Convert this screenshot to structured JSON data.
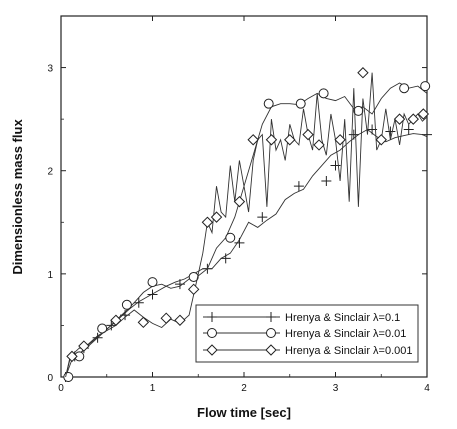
{
  "chart_data": {
    "type": "line",
    "title": "",
    "xlabel": "Flow time [sec]",
    "ylabel": "Dimensionless mass flux",
    "xlim": [
      0,
      4
    ],
    "ylim": [
      0,
      3.5
    ],
    "xticks": [
      "0",
      "1",
      "2",
      "3",
      "4"
    ],
    "yticks": [
      "0",
      "1",
      "2",
      "3"
    ],
    "grid": false,
    "legend_position": "lower-right",
    "series": [
      {
        "name": "Hrenya & Sinclair λ=0.1",
        "marker": "plus",
        "x": [
          0.05,
          0.12,
          0.2,
          0.28,
          0.35,
          0.45,
          0.55,
          0.65,
          0.75,
          0.85,
          0.95,
          1.05,
          1.15,
          1.25,
          1.35,
          1.45,
          1.55,
          1.65,
          1.75,
          1.85,
          1.95,
          2.05,
          2.15,
          2.25,
          2.35,
          2.45,
          2.55,
          2.65,
          2.75,
          2.85,
          2.95,
          3.05,
          3.15,
          3.25,
          3.35,
          3.45,
          3.55,
          3.65,
          3.75,
          3.85,
          3.95,
          4.0
        ],
        "y": [
          0.0,
          0.17,
          0.22,
          0.3,
          0.35,
          0.43,
          0.5,
          0.58,
          0.66,
          0.73,
          0.78,
          0.83,
          0.88,
          0.92,
          0.95,
          1.0,
          1.05,
          1.05,
          1.15,
          1.2,
          1.33,
          1.5,
          1.45,
          1.52,
          1.58,
          1.72,
          1.78,
          1.82,
          1.95,
          2.05,
          2.15,
          2.2,
          2.28,
          2.35,
          2.4,
          2.33,
          2.28,
          2.32,
          2.34,
          2.36,
          2.35,
          2.33
        ],
        "marker_x": [
          0.05,
          0.15,
          0.25,
          0.4,
          0.55,
          0.7,
          0.85,
          1.0,
          1.3,
          1.6,
          1.8,
          1.95,
          2.2,
          2.6,
          2.9,
          3.0,
          3.2,
          3.4,
          3.6,
          3.8,
          4.0
        ],
        "marker_y": [
          0.0,
          0.2,
          0.28,
          0.38,
          0.5,
          0.6,
          0.72,
          0.8,
          0.9,
          1.05,
          1.15,
          1.3,
          1.55,
          1.85,
          1.9,
          2.05,
          2.35,
          2.4,
          2.38,
          2.4,
          2.35
        ]
      },
      {
        "name": "Hrenya & Sinclair λ=0.01",
        "marker": "circle",
        "x": [
          0.05,
          0.1,
          0.2,
          0.3,
          0.4,
          0.5,
          0.6,
          0.7,
          0.8,
          0.9,
          1.0,
          1.1,
          1.2,
          1.3,
          1.4,
          1.5,
          1.6,
          1.7,
          1.8,
          1.9,
          2.0,
          2.1,
          2.2,
          2.3,
          2.4,
          2.5,
          2.6,
          2.7,
          2.8,
          2.9,
          3.0,
          3.1,
          3.2,
          3.3,
          3.4,
          3.5,
          3.6,
          3.7,
          3.8,
          3.9,
          4.0
        ],
        "y": [
          0.0,
          0.18,
          0.22,
          0.3,
          0.38,
          0.46,
          0.55,
          0.63,
          0.72,
          0.82,
          0.88,
          0.9,
          0.86,
          0.88,
          0.95,
          0.98,
          1.05,
          1.25,
          1.35,
          1.55,
          1.85,
          2.15,
          2.45,
          2.62,
          2.65,
          2.65,
          2.64,
          2.7,
          2.75,
          2.7,
          2.68,
          2.72,
          2.6,
          2.62,
          2.55,
          2.7,
          2.8,
          2.85,
          2.8,
          2.82,
          2.75
        ],
        "marker_x": [
          0.08,
          0.2,
          0.45,
          0.72,
          1.0,
          1.45,
          1.85,
          2.27,
          2.62,
          2.87,
          3.25,
          3.75,
          3.98
        ],
        "marker_y": [
          0.0,
          0.2,
          0.47,
          0.7,
          0.92,
          0.97,
          1.35,
          2.65,
          2.65,
          2.75,
          2.58,
          2.8,
          2.82
        ]
      },
      {
        "name": "Hrenya & Sinclair λ=0.001",
        "marker": "diamond",
        "x": [
          0.05,
          0.1,
          0.2,
          0.3,
          0.4,
          0.5,
          0.6,
          0.7,
          0.8,
          0.9,
          1.0,
          1.1,
          1.2,
          1.3,
          1.4,
          1.5,
          1.55,
          1.6,
          1.65,
          1.7,
          1.75,
          1.8,
          1.85,
          1.9,
          1.95,
          2.0,
          2.05,
          2.1,
          2.15,
          2.2,
          2.25,
          2.3,
          2.35,
          2.4,
          2.45,
          2.5,
          2.55,
          2.6,
          2.65,
          2.7,
          2.75,
          2.8,
          2.85,
          2.9,
          2.95,
          3.0,
          3.05,
          3.1,
          3.15,
          3.2,
          3.25,
          3.3,
          3.35,
          3.4,
          3.45,
          3.5,
          3.55,
          3.6,
          3.65,
          3.7,
          3.75,
          3.8,
          3.85,
          3.9,
          3.95,
          4.0
        ],
        "y": [
          0.0,
          0.2,
          0.28,
          0.32,
          0.4,
          0.45,
          0.5,
          0.58,
          0.65,
          0.58,
          0.52,
          0.48,
          0.56,
          0.52,
          0.6,
          1.0,
          1.2,
          1.5,
          1.4,
          1.85,
          1.6,
          1.55,
          2.05,
          1.7,
          2.1,
          1.85,
          1.6,
          2.1,
          2.3,
          2.35,
          1.65,
          2.5,
          2.2,
          2.3,
          2.1,
          2.45,
          2.3,
          2.25,
          2.6,
          2.35,
          2.2,
          2.75,
          2.3,
          2.15,
          2.55,
          2.3,
          1.9,
          2.5,
          1.7,
          2.8,
          1.65,
          2.7,
          2.35,
          2.95,
          2.2,
          2.3,
          2.6,
          2.3,
          2.5,
          2.25,
          2.55,
          2.45,
          2.5,
          2.55,
          2.48,
          2.52
        ],
        "marker_x": [
          0.12,
          0.25,
          0.6,
          0.9,
          1.15,
          1.3,
          1.45,
          1.6,
          1.7,
          1.95,
          2.1,
          2.3,
          2.5,
          2.7,
          2.82,
          3.05,
          3.3,
          3.5,
          3.7,
          3.85,
          3.96
        ],
        "marker_y": [
          0.2,
          0.3,
          0.55,
          0.53,
          0.57,
          0.55,
          0.85,
          1.5,
          1.55,
          1.7,
          2.3,
          2.3,
          2.3,
          2.35,
          2.25,
          2.3,
          2.95,
          2.3,
          2.5,
          2.5,
          2.55
        ]
      }
    ]
  }
}
